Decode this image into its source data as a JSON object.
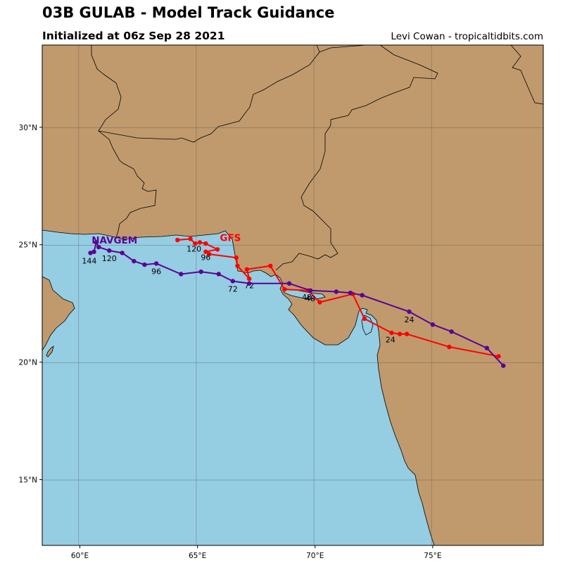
{
  "header": {
    "title": "03B GULAB - Model Track Guidance",
    "subtitle": "Initialized at 06z Sep 28 2021",
    "credit": "Levi Cowan - tropicaltidbits.com"
  },
  "colors": {
    "ocean": "#95cde3",
    "land": "#c09a6d",
    "border": "#000000",
    "grid": "#555555"
  },
  "map": {
    "lon_range": [
      58.4,
      79.7
    ],
    "lat_range": [
      12.2,
      33.5
    ],
    "lon_ticks": [
      {
        "value": 60,
        "label": "60°E"
      },
      {
        "value": 65,
        "label": "65°E"
      },
      {
        "value": 70,
        "label": "70°E"
      },
      {
        "value": 75,
        "label": "75°E"
      }
    ],
    "lat_ticks": [
      {
        "value": 15,
        "label": "15°N"
      },
      {
        "value": 20,
        "label": "20°N"
      },
      {
        "value": 25,
        "label": "25°N"
      },
      {
        "value": 30,
        "label": "30°N"
      }
    ]
  },
  "chart_data": {
    "type": "line",
    "series": [
      {
        "name": "GFS",
        "color": "#ff0000",
        "points": [
          [
            77.8,
            20.25
          ],
          [
            75.7,
            20.65
          ],
          [
            73.9,
            21.2
          ],
          [
            73.6,
            21.2
          ],
          [
            73.25,
            21.25
          ],
          [
            72.1,
            21.85
          ],
          [
            71.6,
            22.9
          ],
          [
            70.2,
            22.55
          ],
          [
            69.7,
            23.05
          ],
          [
            68.7,
            23.1
          ],
          [
            68.1,
            24.1
          ],
          [
            67.1,
            23.95
          ],
          [
            67.2,
            23.55
          ],
          [
            66.7,
            24.1
          ],
          [
            66.65,
            24.45
          ],
          [
            65.5,
            24.6
          ],
          [
            65.35,
            24.7
          ],
          [
            65.85,
            24.8
          ],
          [
            65.35,
            25.05
          ],
          [
            65.1,
            25.1
          ],
          [
            64.9,
            25.05
          ],
          [
            64.7,
            25.25
          ],
          [
            64.15,
            25.2
          ]
        ],
        "hour_labels": [
          {
            "text": "24",
            "lon": 73.2,
            "lat": 20.85
          },
          {
            "text": "48",
            "lon": 69.65,
            "lat": 22.65
          },
          {
            "text": "72",
            "lon": 67.2,
            "lat": 23.15
          },
          {
            "text": "96",
            "lon": 65.35,
            "lat": 24.35
          },
          {
            "text": "120",
            "lon": 64.85,
            "lat": 24.7
          }
        ],
        "name_label": {
          "lon": 65.95,
          "lat": 25.15
        }
      },
      {
        "name": "NAVGEM",
        "color": "#5a0494",
        "points": [
          [
            78.0,
            19.85
          ],
          [
            77.3,
            20.6
          ],
          [
            75.8,
            21.3
          ],
          [
            75.0,
            21.6
          ],
          [
            74.0,
            22.15
          ],
          [
            72.0,
            22.85
          ],
          [
            71.5,
            22.95
          ],
          [
            70.9,
            23.0
          ],
          [
            69.8,
            23.05
          ],
          [
            68.9,
            23.35
          ],
          [
            67.2,
            23.35
          ],
          [
            66.5,
            23.45
          ],
          [
            65.9,
            23.75
          ],
          [
            65.15,
            23.85
          ],
          [
            64.3,
            23.75
          ],
          [
            63.25,
            24.2
          ],
          [
            62.75,
            24.15
          ],
          [
            62.3,
            24.3
          ],
          [
            61.8,
            24.65
          ],
          [
            61.25,
            24.75
          ],
          [
            60.8,
            24.9
          ],
          [
            60.7,
            25.1
          ],
          [
            60.6,
            24.7
          ],
          [
            60.45,
            24.65
          ]
        ],
        "hour_labels": [
          {
            "text": "24",
            "lon": 74.0,
            "lat": 21.7
          },
          {
            "text": "48",
            "lon": 69.8,
            "lat": 22.6
          },
          {
            "text": "72",
            "lon": 66.5,
            "lat": 23.0
          },
          {
            "text": "96",
            "lon": 63.25,
            "lat": 23.75
          },
          {
            "text": "120",
            "lon": 61.25,
            "lat": 24.3
          },
          {
            "text": "144",
            "lon": 60.4,
            "lat": 24.2
          }
        ],
        "name_label": {
          "lon": 60.5,
          "lat": 25.05
        }
      }
    ]
  }
}
